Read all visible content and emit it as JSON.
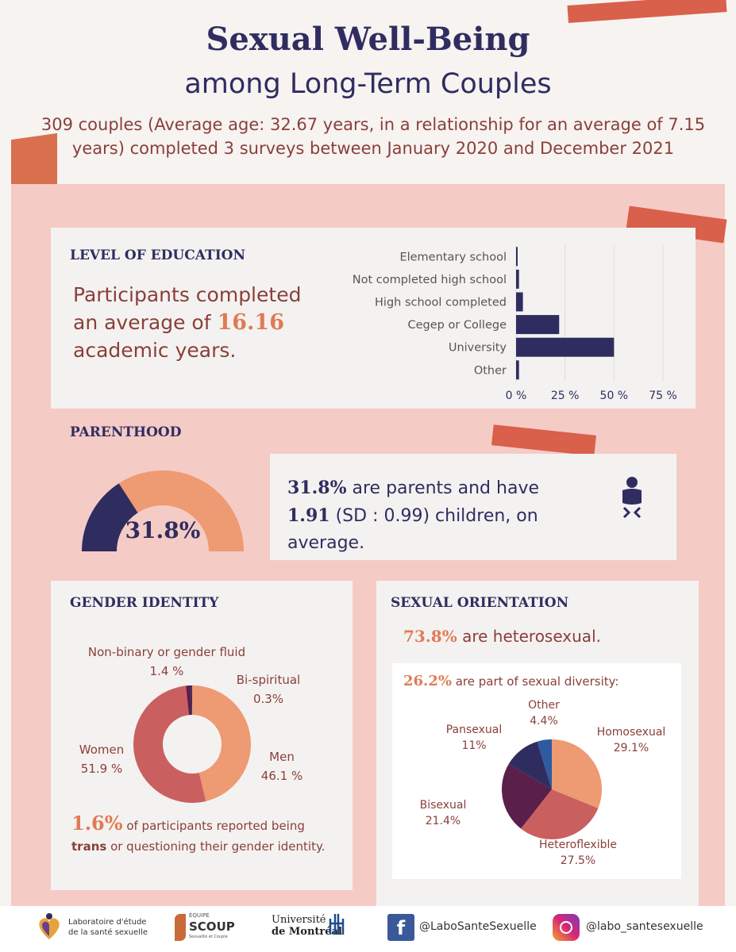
{
  "colors": {
    "navy": "#2f2d60",
    "pink_bg": "#f5cbc6",
    "brown_text": "#8a3f3a",
    "orange": "#e07b55",
    "men": "#ee9a72",
    "women": "#c9605f",
    "nonbinary": "#5a1f4a",
    "bispiritual": "#2f2d60"
  },
  "header": {
    "title": "Sexual Well-Being",
    "subtitle": "among Long-Term Couples",
    "description": "309 couples (Average age: 32.67 years, in a relationship for an average of 7.15 years) completed 3 surveys between January 2020 and December 2021"
  },
  "education": {
    "heading": "LEVEL OF EDUCATION",
    "text_before": "Participants completed an average of ",
    "highlight": "16.16",
    "text_after": " academic years."
  },
  "parenthood": {
    "heading": "PARENTHOOD",
    "gauge_label": "31.8%",
    "gauge_fraction": 0.318,
    "stat_pct": "31.8%",
    "text1": " are parents and have",
    "stat_children": "1.91",
    "text2": " (SD : 0.99) children, on average.",
    "icon": "baby-icon"
  },
  "gender": {
    "heading": "GENDER IDENTITY",
    "labels": {
      "nonbinary_name": "Non-binary or gender fluid",
      "nonbinary_value": "1.4 %",
      "bispiritual_name": "Bi-spiritual",
      "bispiritual_value": "0.3%",
      "women_name": "Women",
      "women_value": "51.9 %",
      "men_name": "Men",
      "men_value": "46.1 %"
    },
    "trans_pct": "1.6%",
    "trans_text1": " of participants reported being ",
    "trans_bold": "trans",
    "trans_text2": " or questioning their gender identity."
  },
  "orientation": {
    "heading": "SEXUAL ORIENTATION",
    "hetero_pct": "73.8%",
    "hetero_text": " are heterosexual.",
    "diversity_pct": "26.2%",
    "diversity_text": " are part of sexual diversity:",
    "labels": {
      "other_name": "Other",
      "other_value": "4.4%",
      "pan_name": "Pansexual",
      "pan_value": "11%",
      "homo_name": "Homosexual",
      "homo_value": "29.1%",
      "bi_name": "Bisexual",
      "bi_value": "21.4%",
      "heteroflex_name": "Heteroflexible",
      "heteroflex_value": "27.5%"
    }
  },
  "footer": {
    "lab_line1": "Laboratoire d'étude",
    "lab_line2": "de la santé sexuelle",
    "scoup_small": "ÉQUIPE",
    "scoup_name": "SCOUP",
    "scoup_sub": "Sexualité et Couple",
    "udem_line1": "Université",
    "udem_line2": "de Montréal",
    "facebook": "@LaboSanteSexuelle",
    "instagram": "@labo_santesexuelle"
  },
  "chart_data": [
    {
      "type": "bar",
      "orientation": "horizontal",
      "categories": [
        "Elementary school",
        "Not completed high school",
        "High school completed",
        "Cegep or College",
        "University",
        "Other"
      ],
      "values": [
        0.5,
        1.5,
        3.5,
        22,
        50,
        1.5
      ],
      "xticks": [
        "0 %",
        "25 %",
        "50 %",
        "75 %"
      ],
      "xlim": [
        0,
        75
      ],
      "grid": true,
      "color": "#2f2d60"
    },
    {
      "type": "pie",
      "donut": true,
      "categories": [
        "Men",
        "Women",
        "Non-binary or gender fluid",
        "Bi-spiritual"
      ],
      "values": [
        46.1,
        51.9,
        1.4,
        0.3
      ],
      "colors": [
        "#ee9a72",
        "#c9605f",
        "#5a1f4a",
        "#2f2d60"
      ]
    },
    {
      "type": "pie",
      "categories": [
        "Homosexual",
        "Heteroflexible",
        "Bisexual",
        "Pansexual",
        "Other"
      ],
      "values": [
        29.1,
        27.5,
        21.4,
        11,
        4.4
      ],
      "colors": [
        "#ee9a72",
        "#c9605f",
        "#5a1f4a",
        "#2f2d60",
        "#2e5aa0"
      ]
    }
  ]
}
